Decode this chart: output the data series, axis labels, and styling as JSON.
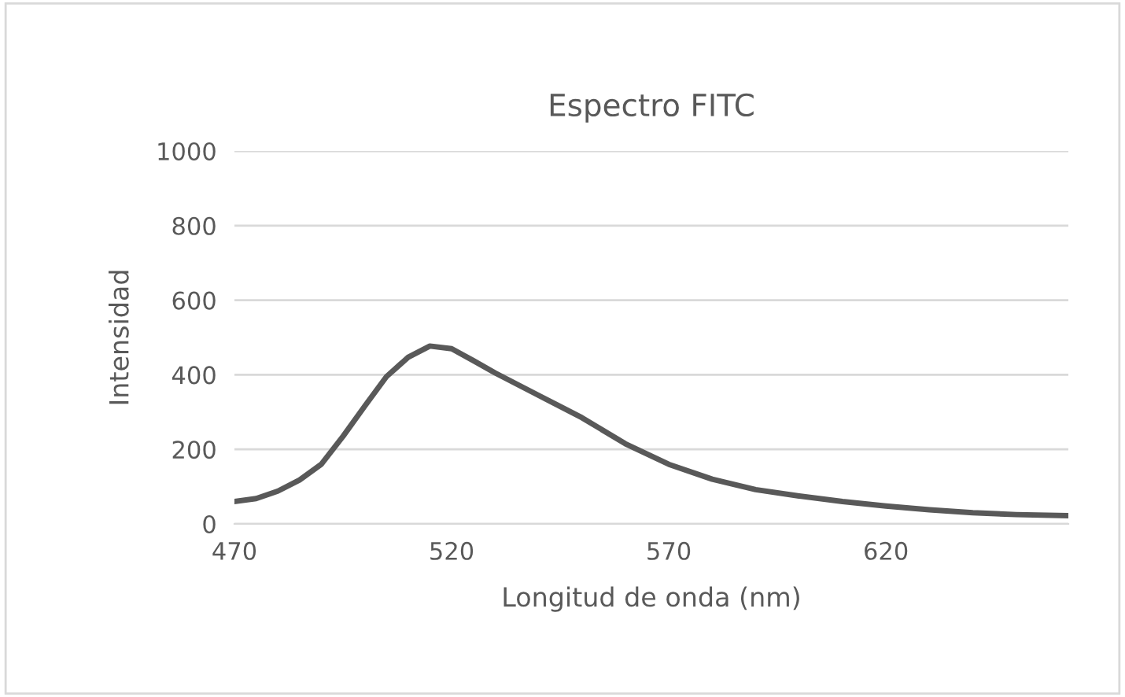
{
  "chart_data": {
    "type": "line",
    "title": "Espectro FITC",
    "xlabel": "Longitud de onda (nm)",
    "ylabel": "Intensidad",
    "x": [
      470,
      475,
      480,
      485,
      490,
      495,
      500,
      505,
      510,
      515,
      520,
      525,
      530,
      540,
      550,
      560,
      570,
      580,
      590,
      600,
      610,
      620,
      630,
      640,
      650,
      662
    ],
    "series": [
      {
        "color": "#595959",
        "values": [
          60,
          68,
          88,
          118,
          160,
          235,
          316,
          395,
          447,
          477,
          470,
          438,
          405,
          345,
          285,
          215,
          160,
          120,
          92,
          75,
          60,
          48,
          38,
          30,
          25,
          22
        ]
      }
    ],
    "xlim": [
      470,
      662
    ],
    "ylim": [
      0,
      1000
    ],
    "xticks": [
      470,
      520,
      570,
      620
    ],
    "yticks": [
      0,
      200,
      400,
      600,
      800,
      1000
    ],
    "grid": "y",
    "legend": false,
    "marker": "none",
    "line_style": "solid"
  }
}
